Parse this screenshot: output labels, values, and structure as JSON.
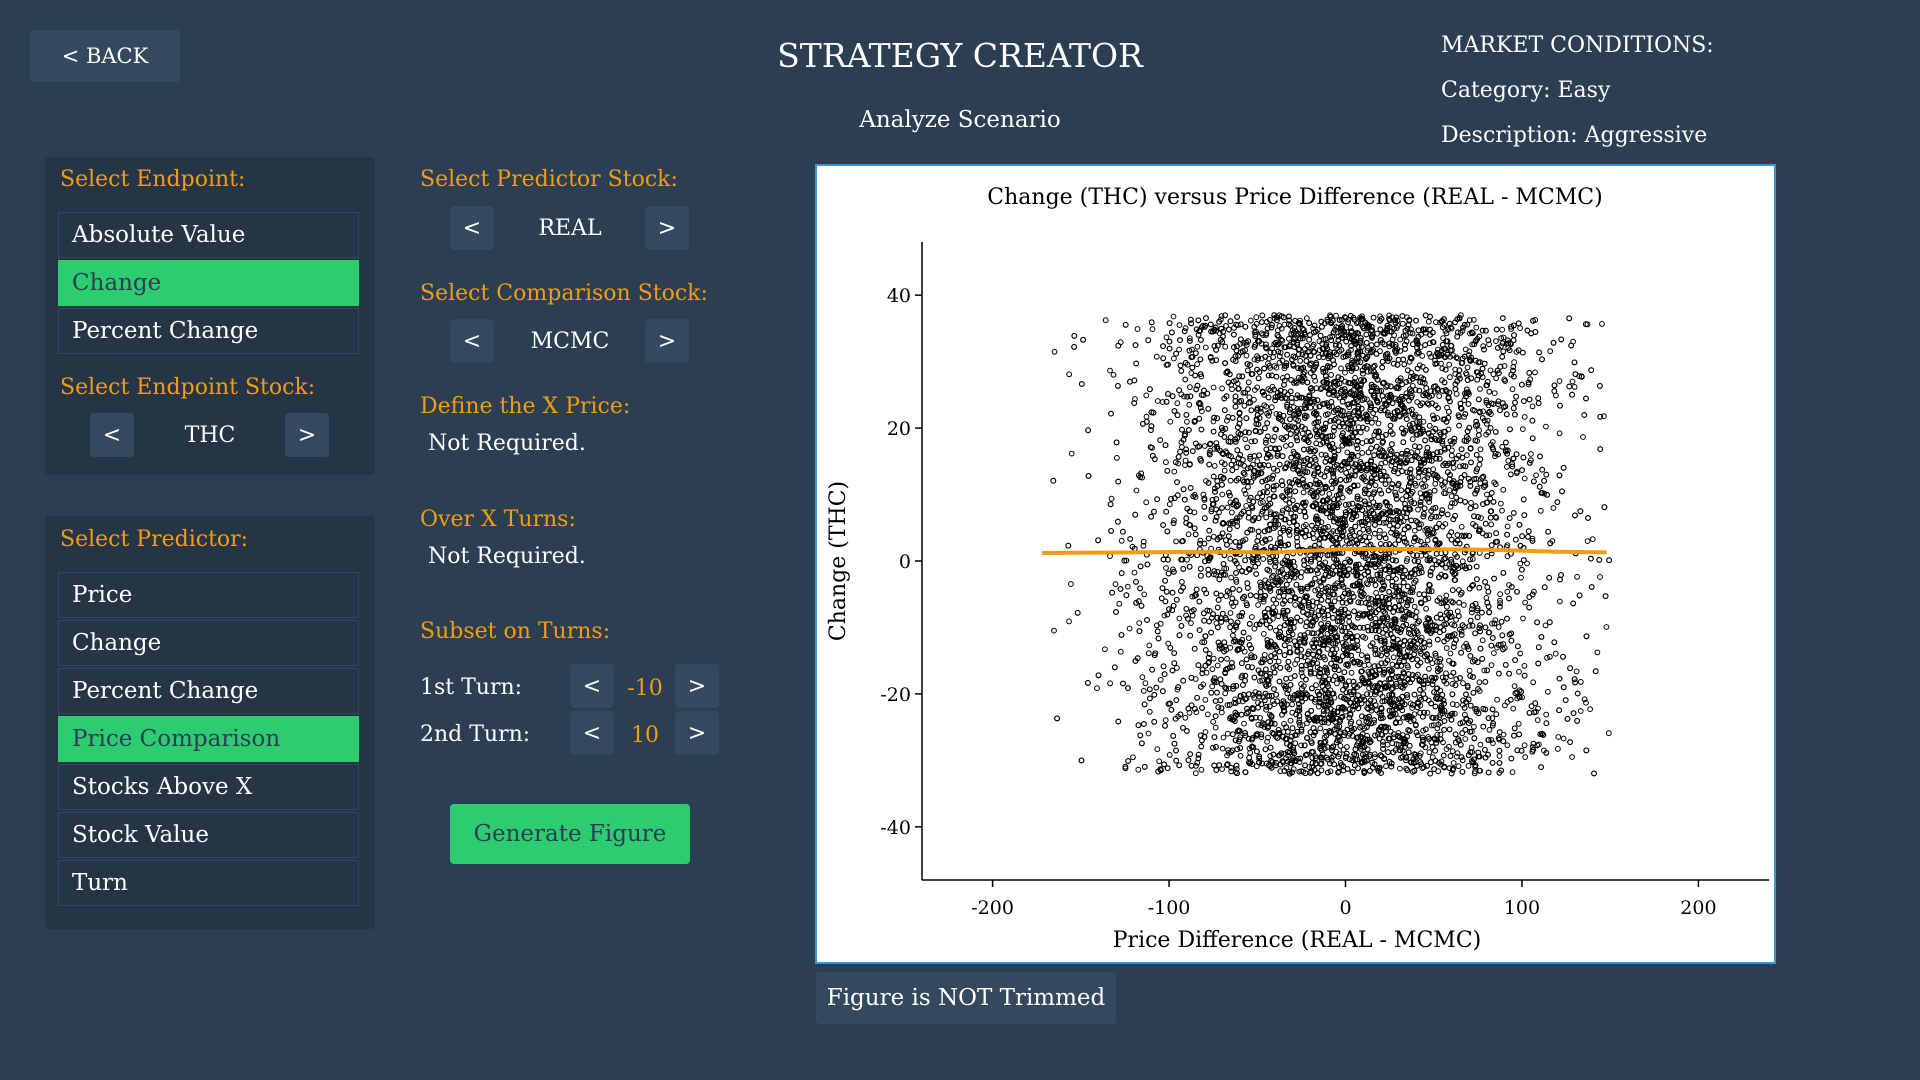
{
  "header": {
    "back_label": "< BACK",
    "title": "STRATEGY CREATOR",
    "subtitle": "Analyze Scenario"
  },
  "market": {
    "heading": "MARKET CONDITIONS:",
    "category": "Category: Easy",
    "description": "Description: Aggressive"
  },
  "endpoint": {
    "label": "Select Endpoint:",
    "items": [
      "Absolute Value",
      "Change",
      "Percent Change"
    ],
    "selected": "Change",
    "stock_label": "Select Endpoint Stock:",
    "stock": "THC"
  },
  "predictor": {
    "label": "Select Predictor:",
    "items": [
      "Price",
      "Change",
      "Percent Change",
      "Price Comparison",
      "Stocks Above X",
      "Stock Value",
      "Turn"
    ],
    "selected": "Price Comparison"
  },
  "options": {
    "predictor_stock_label": "Select Predictor Stock:",
    "predictor_stock": "REAL",
    "comparison_stock_label": "Select Comparison Stock:",
    "comparison_stock": "MCMC",
    "x_price_label": "Define the X Price:",
    "x_price_value": "Not Required.",
    "x_turns_label": "Over X Turns:",
    "x_turns_value": "Not Required.",
    "subset_label": "Subset on Turns:",
    "first_turn_label": "1st Turn:",
    "first_turn": "-10",
    "second_turn_label": "2nd Turn:",
    "second_turn": "10",
    "prev_symbol": "<",
    "next_symbol": ">",
    "generate_label": "Generate Figure"
  },
  "chart_data": {
    "type": "scatter",
    "title": "Change (THC) versus Price Difference (REAL - MCMC)",
    "xlabel": "Price Difference (REAL - MCMC)",
    "ylabel": "Change (THC)",
    "xlim": [
      -240,
      240
    ],
    "ylim": [
      -48,
      48
    ],
    "xticks": [
      -200,
      -100,
      0,
      100,
      200
    ],
    "yticks": [
      -40,
      -20,
      0,
      20,
      40
    ],
    "point_cloud": {
      "x_center": 0,
      "x_spread": 55,
      "x_range": [
        -175,
        150
      ],
      "y_range": [
        -32,
        37
      ],
      "approx_points": 9000
    },
    "trend": {
      "x": [
        -172,
        -120,
        -80,
        -40,
        0,
        40,
        80,
        120,
        148
      ],
      "y": [
        1.2,
        1.3,
        1.4,
        1.3,
        1.8,
        1.8,
        1.7,
        1.4,
        1.3
      ]
    },
    "marker_color": "#000000",
    "trend_color": "#f39c12",
    "grid": false
  },
  "footer": {
    "trim_label": "Figure is NOT Trimmed"
  }
}
